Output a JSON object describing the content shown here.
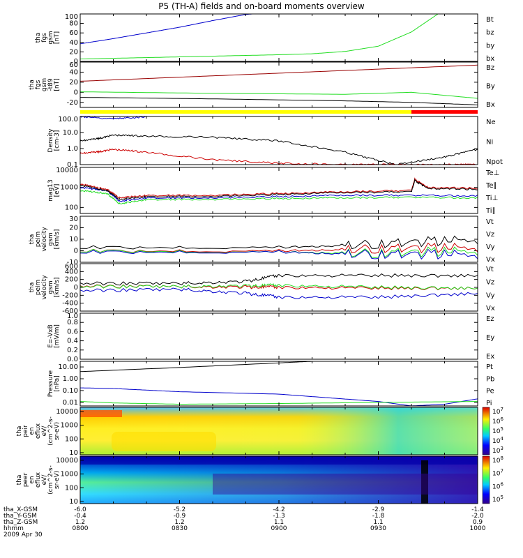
{
  "title": "P5 (TH-A) fields and on-board moments overview",
  "date": "2009 Apr 30",
  "time_axis": {
    "ticks": [
      "0800",
      "0830",
      "0900",
      "0930",
      "1000"
    ],
    "rows": [
      {
        "label": "tha_X-GSM",
        "values": [
          "-6.0",
          "-5.2",
          "-4.2",
          "-2.9",
          "-1.4"
        ]
      },
      {
        "label": "tha_Y-GSM",
        "values": [
          "-0.4",
          "-0.9",
          "-1.3",
          "-1.8",
          "-2.0"
        ]
      },
      {
        "label": "tha_Z-GSM",
        "values": [
          "1.2",
          "1.2",
          "1.1",
          "1.1",
          "0.9"
        ]
      },
      {
        "label": "hhmm",
        "values": [
          "0800",
          "0830",
          "0900",
          "0930",
          "1000"
        ]
      }
    ]
  },
  "chart_data": [
    {
      "type": "line",
      "ylabel": [
        "tha",
        "fgs",
        "gsm",
        "[nT]"
      ],
      "ylim": [
        0,
        100
      ],
      "yticks": [
        "0",
        "20",
        "40",
        "60",
        "80",
        "100"
      ],
      "legend": [
        "Bt",
        "bz",
        "by",
        "bx"
      ],
      "series": [
        {
          "name": "bx",
          "color": "#0000cc",
          "x": [
            0,
            10,
            20,
            30,
            40,
            50,
            52
          ],
          "y": [
            37,
            48,
            60,
            72,
            86,
            99,
            100
          ]
        },
        {
          "name": "by",
          "color": "#22dd22",
          "x": [
            0,
            20,
            40,
            60,
            70,
            80,
            90,
            100,
            108
          ],
          "y": [
            5,
            8,
            11,
            14,
            16,
            21,
            32,
            62,
            100
          ]
        }
      ]
    },
    {
      "type": "line",
      "ylabel": [
        "tha",
        "fgs",
        "gsm",
        "-t89",
        "[nT]"
      ],
      "ylim": [
        -30,
        60
      ],
      "yticks": [
        "-20",
        "0",
        "20",
        "40",
        "60"
      ],
      "legend": [
        "Bz",
        "By",
        "Bx"
      ],
      "series": [
        {
          "name": "Bz",
          "color": "#990000",
          "x": [
            0,
            30,
            60,
            90,
            120
          ],
          "y": [
            22,
            30,
            38,
            46,
            54
          ]
        },
        {
          "name": "By",
          "color": "#22dd22",
          "x": [
            0,
            40,
            80,
            100,
            120
          ],
          "y": [
            1,
            -2,
            -4,
            0,
            -12
          ]
        },
        {
          "name": "Bx",
          "color": "#000000",
          "x": [
            0,
            40,
            80,
            100,
            120
          ],
          "y": [
            -10,
            -13,
            -17,
            -20,
            -25
          ]
        }
      ],
      "mode_bar": [
        {
          "from": 0,
          "to": 100,
          "color": "#ffff00"
        },
        {
          "from": 100,
          "to": 120,
          "color": "#ff0000"
        }
      ]
    },
    {
      "type": "line",
      "ylabel": [
        "Density",
        "[cm-3]"
      ],
      "log": true,
      "ylim": [
        0.1,
        100
      ],
      "yticks": [
        "0.1",
        "1.0",
        "10.0",
        "100.0"
      ],
      "legend": [
        "Ne",
        "Ni",
        "Npot"
      ],
      "series": [
        {
          "name": "Ni",
          "color": "#000000",
          "x": [
            0,
            5,
            10,
            20,
            40,
            60,
            80,
            95,
            110,
            120
          ],
          "y": [
            3,
            4,
            7,
            6,
            5,
            3,
            0.6,
            0.1,
            0.3,
            0.9
          ]
        },
        {
          "name": "Ne",
          "color": "#cc0000",
          "x": [
            0,
            5,
            10,
            20,
            40,
            60,
            80,
            95,
            110,
            120
          ],
          "y": [
            0.5,
            0.6,
            0.9,
            0.6,
            0.2,
            0.12,
            0.1,
            0.1,
            0.1,
            0.1
          ]
        },
        {
          "name": "Npot",
          "color": "#0000cc",
          "x": [
            0,
            10,
            20
          ],
          "y": [
            100,
            70,
            100
          ]
        }
      ]
    },
    {
      "type": "line",
      "ylabel": [
        "mag13",
        "[eV]"
      ],
      "log": true,
      "ylim": [
        50,
        10000
      ],
      "yticks": [
        "100",
        "1000",
        "10000"
      ],
      "legend": [
        "Te⊥",
        "Te∥",
        "Ti⊥",
        "Ti∥"
      ],
      "series": [
        {
          "name": "Ti⊥",
          "color": "#0000cc",
          "x": [
            0,
            8,
            12,
            20,
            40,
            60,
            80,
            100,
            120
          ],
          "y": [
            1000,
            700,
            200,
            300,
            300,
            350,
            400,
            400,
            380
          ]
        },
        {
          "name": "Ti∥",
          "color": "#22dd22",
          "x": [
            0,
            8,
            12,
            20,
            40,
            60,
            80,
            100,
            120
          ],
          "y": [
            700,
            500,
            150,
            250,
            250,
            280,
            300,
            320,
            300
          ]
        },
        {
          "name": "Te⊥",
          "color": "#cc0000",
          "x": [
            0,
            8,
            12,
            20,
            40,
            60,
            80,
            100,
            101,
            105,
            120
          ],
          "y": [
            1500,
            800,
            300,
            400,
            400,
            500,
            600,
            700,
            2500,
            1000,
            900
          ]
        },
        {
          "name": "Te∥",
          "color": "#000000",
          "x": [
            0,
            8,
            12,
            20,
            40,
            60,
            80,
            100,
            101,
            105,
            120
          ],
          "y": [
            1300,
            700,
            250,
            350,
            350,
            450,
            550,
            600,
            2200,
            900,
            800
          ]
        }
      ]
    },
    {
      "type": "line",
      "ylabel": [
        "tha",
        "peim",
        "velocity",
        "gsm",
        "[km/s]"
      ],
      "ylim": [
        -10,
        30
      ],
      "yticks": [
        "-10",
        "0",
        "10",
        "20",
        "30"
      ],
      "legend": [
        "Vt",
        "Vz",
        "Vy",
        "Vx"
      ],
      "series": [
        {
          "name": "Vt",
          "color": "#000000",
          "x": [
            0,
            60,
            90,
            120
          ],
          "y": [
            3,
            3,
            6,
            10
          ]
        },
        {
          "name": "Vz",
          "color": "#cc0000",
          "x": [
            0,
            60,
            90,
            120
          ],
          "y": [
            0,
            0,
            2,
            3
          ]
        },
        {
          "name": "Vy",
          "color": "#22dd22",
          "x": [
            0,
            60,
            90,
            120
          ],
          "y": [
            0,
            -1,
            -2,
            0
          ]
        },
        {
          "name": "Vx",
          "color": "#0000cc",
          "x": [
            0,
            60,
            90,
            120
          ],
          "y": [
            -1,
            -1,
            -3,
            -3
          ]
        }
      ]
    },
    {
      "type": "line",
      "ylabel": [
        "tha",
        "peim",
        "velocity",
        "gsm",
        "[km/s]"
      ],
      "ylim": [
        -600,
        600
      ],
      "yticks": [
        "-600",
        "-400",
        "-200",
        "0",
        "200",
        "400",
        "600"
      ],
      "legend": [
        "Vt",
        "Vz",
        "Vy",
        "Vx"
      ],
      "series": [
        {
          "name": "Vt",
          "color": "#000000",
          "x": [
            0,
            30,
            50,
            60,
            90,
            120
          ],
          "y": [
            100,
            100,
            150,
            300,
            300,
            300
          ]
        },
        {
          "name": "Vz",
          "color": "#cc0000",
          "x": [
            0,
            30,
            50,
            60,
            90,
            120
          ],
          "y": [
            30,
            20,
            10,
            0,
            -20,
            -20
          ]
        },
        {
          "name": "Vy",
          "color": "#22dd22",
          "x": [
            0,
            30,
            50,
            60,
            90,
            120
          ],
          "y": [
            20,
            20,
            40,
            50,
            0,
            -20
          ]
        },
        {
          "name": "Vx",
          "color": "#0000cc",
          "x": [
            0,
            30,
            50,
            60,
            90,
            120
          ],
          "y": [
            -80,
            -50,
            -150,
            -250,
            -250,
            -150
          ]
        }
      ]
    },
    {
      "type": "line",
      "ylabel": [
        "E=-VxB",
        "[mV/m]"
      ],
      "ylim": [
        0,
        1
      ],
      "yticks": [
        "0.0",
        "0.2",
        "0.4",
        "0.6",
        "0.8",
        "1.0"
      ],
      "legend": [
        "Ez",
        "Ey",
        "Ex"
      ],
      "series": []
    },
    {
      "type": "line",
      "ylabel": [
        "Pressure",
        "[nPa]"
      ],
      "log": true,
      "ylim": [
        0.005,
        30
      ],
      "yticks": [
        "0.01",
        "0.10",
        "1.00",
        "10.00"
      ],
      "legend": [
        "Pt",
        "Pb",
        "Pe",
        "Pi"
      ],
      "series": [
        {
          "name": "Pt",
          "color": "#000000",
          "x": [
            0,
            30,
            60,
            70
          ],
          "y": [
            4,
            9,
            22,
            30
          ]
        },
        {
          "name": "Pi",
          "color": "#0000cc",
          "x": [
            0,
            10,
            30,
            60,
            90,
            100,
            110,
            120
          ],
          "y": [
            0.17,
            0.15,
            0.08,
            0.05,
            0.012,
            0.005,
            0.007,
            0.02
          ]
        },
        {
          "name": "Pe",
          "color": "#22dd22",
          "x": [
            0,
            10,
            30,
            60,
            90,
            120
          ],
          "y": [
            0.012,
            0.009,
            0.007,
            0.008,
            0.01,
            0.012
          ]
        }
      ]
    },
    {
      "type": "heatmap",
      "ylabel": [
        "tha",
        "peir",
        "en",
        "eflux",
        "eV/",
        "(cm^2-s-",
        "sr-eV)"
      ],
      "yticks": [
        "10",
        "100",
        "1000",
        "10000"
      ],
      "colorbar": [
        "10^3",
        "10^4",
        "10^5",
        "10^6",
        "10^7"
      ]
    },
    {
      "type": "heatmap",
      "ylabel": [
        "tha",
        "peer",
        "en",
        "eflux",
        "eV/",
        "(cm^2-s-",
        "sr-eV)"
      ],
      "yticks": [
        "10",
        "100",
        "1000",
        "10000"
      ],
      "colorbar": [
        "10^5",
        "10^6",
        "10^7",
        "10^8"
      ]
    }
  ]
}
